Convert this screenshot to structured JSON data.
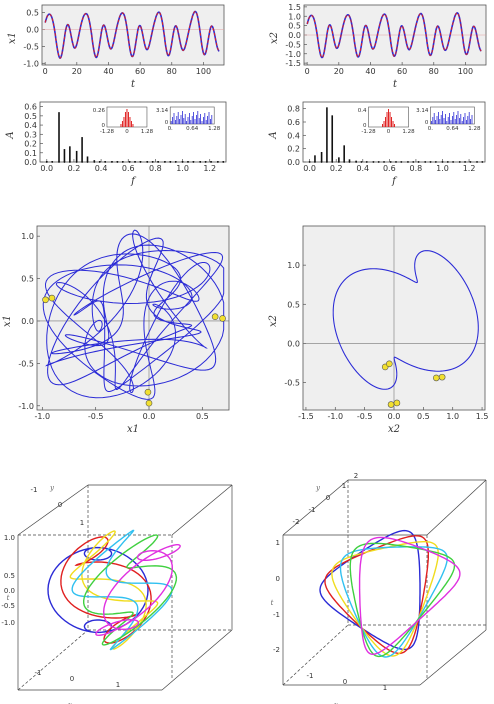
{
  "chart_data": [
    {
      "id": "ts_left",
      "type": "line",
      "xlabel": "t",
      "ylabel": "x1",
      "xlim": [
        -2,
        113
      ],
      "ylim": [
        -1.05,
        0.72
      ],
      "xticks": [
        "0",
        "20",
        "40",
        "60",
        "80",
        "100"
      ],
      "xtick_values": [
        0,
        20,
        40,
        60,
        80,
        100
      ],
      "yticks": [
        "-1.0",
        "-0.5",
        "0.0",
        "0.5"
      ],
      "ytick_values": [
        -1.0,
        -0.5,
        0.0,
        0.5
      ],
      "series": [
        {
          "style": "solid",
          "color": "#2b2bd6",
          "freqs": [
            0.55,
            0.27,
            0.83
          ],
          "amps": [
            0.45,
            0.3,
            0.12
          ],
          "offset": -0.15
        },
        {
          "style": "dashed",
          "color": "#e02020",
          "freqs": [
            0.55,
            0.27,
            0.83
          ],
          "amps": [
            0.45,
            0.3,
            0.12
          ],
          "offset": -0.15
        }
      ],
      "grid": false,
      "background": "#efefef"
    },
    {
      "id": "ts_right",
      "type": "line",
      "xlabel": "t",
      "ylabel": "x2",
      "xlim": [
        -2,
        113
      ],
      "ylim": [
        -1.6,
        1.6
      ],
      "xticks": [
        "0",
        "20",
        "40",
        "60",
        "80",
        "100"
      ],
      "xtick_values": [
        0,
        20,
        40,
        60,
        80,
        100
      ],
      "yticks": [
        "-1.5",
        "-1.0",
        "-0.5",
        "0.0",
        "0.5",
        "1.0",
        "1.5"
      ],
      "ytick_values": [
        -1.5,
        -1.0,
        -0.5,
        0.0,
        0.5,
        1.0,
        1.5
      ],
      "series": [
        {
          "style": "solid",
          "color": "#2b2bd6",
          "freqs": [
            0.55,
            0.27,
            0.83
          ],
          "amps": [
            0.8,
            0.5,
            0.2
          ],
          "offset": 0.0
        },
        {
          "style": "dashed",
          "color": "#e02020",
          "freqs": [
            0.55,
            0.27,
            0.83
          ],
          "amps": [
            0.8,
            0.5,
            0.2
          ],
          "offset": 0.0
        }
      ],
      "grid": false,
      "background": "#efefef"
    },
    {
      "id": "spec_left",
      "type": "bar",
      "xlabel": "f",
      "ylabel": "A",
      "xlim": [
        -0.05,
        1.32
      ],
      "ylim": [
        0,
        0.65
      ],
      "xticks": [
        "0.0",
        "0.2",
        "0.4",
        "0.6",
        "0.8",
        "1.0",
        "1.2"
      ],
      "xtick_values": [
        0,
        0.2,
        0.4,
        0.6,
        0.8,
        1.0,
        1.2
      ],
      "yticks": [
        "0.0",
        "0.1",
        "0.2",
        "0.3",
        "0.4",
        "0.5",
        "0.6"
      ],
      "ytick_values": [
        0,
        0.1,
        0.2,
        0.3,
        0.4,
        0.5,
        0.6
      ],
      "x": [
        0.0,
        0.04,
        0.09,
        0.13,
        0.17,
        0.22,
        0.26,
        0.3,
        0.35,
        0.39,
        0.43,
        0.48,
        0.52,
        0.56,
        0.61,
        0.65,
        0.69,
        0.74,
        0.78,
        0.82,
        0.87,
        0.91,
        0.95,
        1.0,
        1.04,
        1.08,
        1.13,
        1.17,
        1.21,
        1.26,
        1.3
      ],
      "values": [
        0.01,
        0.01,
        0.54,
        0.14,
        0.17,
        0.12,
        0.27,
        0.06,
        0.02,
        0.01,
        0.01,
        0.01,
        0.01,
        0.01,
        0.01,
        0.01,
        0.01,
        0.01,
        0.01,
        0.01,
        0.01,
        0.01,
        0.01,
        0.01,
        0.01,
        0.01,
        0.01,
        0.01,
        0.01,
        0.01,
        0.01
      ],
      "inset_amplitude": {
        "color": "#e02020",
        "ymax_label": "0.26",
        "ymin_label": "0",
        "xticks": [
          "-1.28",
          "0",
          "1.28"
        ]
      },
      "inset_phase": {
        "color": "#2b2bd6",
        "ymax_label": "3.14",
        "ymin_label": "0",
        "xticks": [
          "0.",
          "0.64",
          "1.28"
        ]
      }
    },
    {
      "id": "spec_right",
      "type": "bar",
      "xlabel": "f",
      "ylabel": "A",
      "xlim": [
        -0.05,
        1.32
      ],
      "ylim": [
        0,
        0.9
      ],
      "xticks": [
        "0.0",
        "0.2",
        "0.4",
        "0.6",
        "0.8",
        "1.0",
        "1.2"
      ],
      "xtick_values": [
        0,
        0.2,
        0.4,
        0.6,
        0.8,
        1.0,
        1.2
      ],
      "yticks": [
        "0.0",
        "0.2",
        "0.4",
        "0.6",
        "0.8"
      ],
      "ytick_values": [
        0,
        0.2,
        0.4,
        0.6,
        0.8
      ],
      "x": [
        0.0,
        0.04,
        0.09,
        0.13,
        0.17,
        0.22,
        0.26,
        0.3,
        0.35,
        0.39,
        0.43,
        0.48,
        0.52,
        0.56,
        0.61,
        0.65,
        0.69,
        0.74,
        0.78,
        0.82,
        0.87,
        0.91,
        0.95,
        1.0,
        1.04,
        1.08,
        1.13,
        1.17,
        1.21,
        1.26,
        1.3
      ],
      "values": [
        0.01,
        0.1,
        0.15,
        0.82,
        0.7,
        0.07,
        0.25,
        0.04,
        0.02,
        0.01,
        0.01,
        0.01,
        0.01,
        0.01,
        0.01,
        0.01,
        0.01,
        0.01,
        0.01,
        0.01,
        0.01,
        0.01,
        0.01,
        0.01,
        0.01,
        0.01,
        0.01,
        0.01,
        0.01,
        0.01,
        0.01
      ],
      "inset_amplitude": {
        "color": "#e02020",
        "ymax_label": "0.4",
        "ymin_label": "0",
        "xticks": [
          "-1.28",
          "0",
          "1.28"
        ]
      },
      "inset_phase": {
        "color": "#2b2bd6",
        "ymax_label": "3.14",
        "ymin_label": "0",
        "xticks": [
          "0.",
          "0.64",
          "1.28"
        ]
      }
    },
    {
      "id": "phase_left",
      "type": "line",
      "xlabel": "x1",
      "ylabel": "x1",
      "xlim": [
        -1.05,
        0.75
      ],
      "ylim": [
        -1.05,
        1.12
      ],
      "xticks": [
        "-1.0",
        "-0.5",
        "0.0",
        "0.5"
      ],
      "xtick_values": [
        -1.0,
        -0.5,
        0.0,
        0.5
      ],
      "yticks": [
        "-1.0",
        "-0.5",
        "0.0",
        "0.5",
        "1.0"
      ],
      "ytick_values": [
        -1.0,
        -0.5,
        0.0,
        0.5,
        1.0
      ],
      "curve_color": "#2b2bd6",
      "points": [
        [
          -0.97,
          0.25
        ],
        [
          -0.91,
          0.27
        ],
        [
          0.62,
          0.05
        ],
        [
          0.69,
          0.03
        ],
        [
          -0.01,
          -0.84
        ],
        [
          0.0,
          -0.97
        ]
      ],
      "point_color": "#f2e030",
      "background": "#efefef"
    },
    {
      "id": "phase_right",
      "type": "line",
      "xlabel": "x2",
      "ylabel": "x2",
      "xlim": [
        -1.55,
        1.55
      ],
      "ylim": [
        -0.85,
        1.5
      ],
      "xticks": [
        "-1.5",
        "-1.0",
        "-0.5",
        "0.0",
        "0.5",
        "1.0",
        "1.5"
      ],
      "xtick_values": [
        -1.5,
        -1.0,
        -0.5,
        0.0,
        0.5,
        1.0,
        1.5
      ],
      "yticks": [
        "-0.5",
        "0.0",
        "0.5",
        "1.0"
      ],
      "ytick_values": [
        -0.5,
        0.0,
        0.5,
        1.0
      ],
      "curve_color": "#2b2bd6",
      "points": [
        [
          -0.15,
          -0.3
        ],
        [
          -0.08,
          -0.26
        ],
        [
          0.72,
          -0.44
        ],
        [
          0.82,
          -0.43
        ],
        [
          -0.05,
          -0.78
        ],
        [
          0.05,
          -0.76
        ]
      ],
      "point_color": "#f2e030",
      "background": "#efefef"
    },
    {
      "id": "box3d_left",
      "type": "line",
      "axis_labels": {
        "x": "x",
        "y": "y",
        "z": "t"
      },
      "x_ticks": [
        "-1",
        "0",
        "1"
      ],
      "y_ticks": [
        "-1",
        "0",
        "1"
      ],
      "z_ticks": [
        "1.0",
        "0.5",
        "0.0",
        "-0.5",
        "-1.0"
      ],
      "curve_colors": [
        "#2b2bd6",
        "#e02020",
        "#f0dc1e",
        "#30c0f0",
        "#40d040",
        "#e030e0"
      ]
    },
    {
      "id": "box3d_right",
      "type": "line",
      "axis_labels": {
        "x": "x",
        "y": "y",
        "z": "t"
      },
      "x_ticks": [
        "-1",
        "0",
        "1"
      ],
      "y_ticks": [
        "-2",
        "-1",
        "0",
        "1",
        "2"
      ],
      "z_ticks": [
        "1",
        "0",
        "-1",
        "-2"
      ],
      "curve_colors": [
        "#2b2bd6",
        "#e02020",
        "#f0dc1e",
        "#30c0f0",
        "#40d040",
        "#e030e0"
      ]
    }
  ]
}
